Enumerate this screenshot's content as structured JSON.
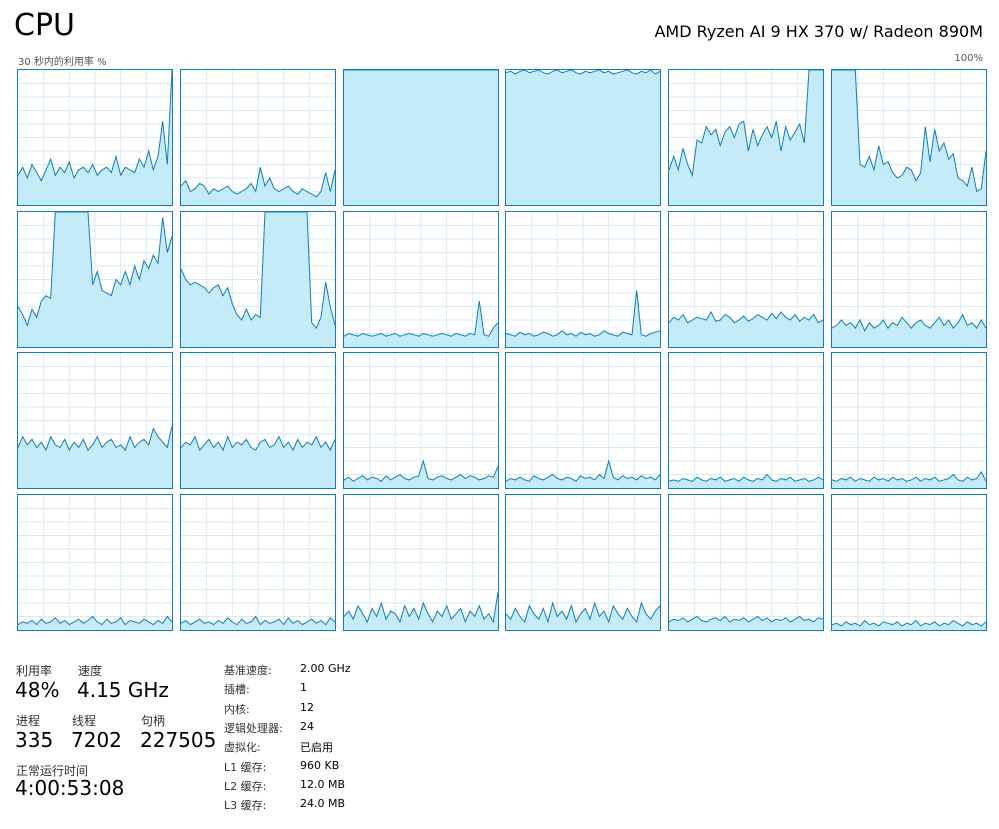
{
  "header": {
    "title": "CPU",
    "model": "AMD Ryzen AI 9 HX 370 w/ Radeon 890M",
    "graph_label": "30 秒内的利用率 %",
    "graph_max": "100%"
  },
  "colors": {
    "line": "#117dbb",
    "fill": "#c4ebf7",
    "grid": "#d9eaf4",
    "border": "#117dbb"
  },
  "chart_data": {
    "type": "area",
    "rows": 4,
    "cols": 6,
    "ylim": [
      0,
      100
    ],
    "xlabel": "",
    "ylabel": "",
    "series": [
      {
        "values": [
          22,
          28,
          20,
          30,
          24,
          18,
          26,
          34,
          22,
          28,
          24,
          32,
          20,
          26,
          28,
          24,
          30,
          22,
          26,
          28,
          24,
          36,
          22,
          28,
          26,
          24,
          34,
          28,
          40,
          26,
          36,
          62,
          30,
          100
        ]
      },
      {
        "values": [
          14,
          18,
          10,
          12,
          16,
          14,
          8,
          12,
          10,
          12,
          14,
          10,
          8,
          10,
          12,
          16,
          10,
          28,
          14,
          20,
          12,
          10,
          12,
          14,
          10,
          8,
          12,
          10,
          8,
          6,
          10,
          24,
          10,
          26
        ]
      },
      {
        "values": [
          100,
          100,
          100,
          100,
          100,
          100,
          100,
          100,
          100,
          100,
          100,
          100,
          100,
          100,
          100,
          100,
          100,
          100,
          100,
          100,
          100,
          100,
          100,
          100,
          100,
          100,
          100,
          100,
          100,
          100,
          100,
          100,
          100,
          100
        ]
      },
      {
        "values": [
          98,
          99,
          97,
          99,
          100,
          98,
          99,
          100,
          98,
          97,
          99,
          100,
          98,
          99,
          100,
          98,
          97,
          99,
          98,
          99,
          100,
          98,
          99,
          97,
          98,
          99,
          100,
          98,
          97,
          99,
          98,
          100,
          97,
          99
        ]
      },
      {
        "values": [
          26,
          36,
          26,
          42,
          30,
          22,
          48,
          46,
          58,
          52,
          56,
          44,
          54,
          58,
          50,
          60,
          62,
          40,
          56,
          44,
          52,
          58,
          50,
          62,
          40,
          58,
          48,
          54,
          60,
          46,
          100,
          100,
          100,
          100
        ]
      },
      {
        "values": [
          100,
          100,
          100,
          100,
          100,
          100,
          30,
          28,
          36,
          26,
          44,
          30,
          32,
          24,
          20,
          22,
          28,
          26,
          18,
          24,
          58,
          32,
          56,
          40,
          46,
          34,
          38,
          20,
          18,
          14,
          28,
          10,
          12,
          40
        ]
      },
      {
        "values": [
          30,
          24,
          16,
          28,
          22,
          34,
          38,
          36,
          100,
          100,
          100,
          100,
          100,
          100,
          100,
          100,
          46,
          56,
          42,
          40,
          38,
          50,
          46,
          56,
          46,
          60,
          50,
          64,
          58,
          68,
          62,
          96,
          70,
          82
        ]
      },
      {
        "values": [
          58,
          50,
          46,
          48,
          46,
          44,
          40,
          44,
          46,
          38,
          44,
          32,
          24,
          20,
          28,
          20,
          24,
          22,
          100,
          100,
          100,
          100,
          100,
          100,
          100,
          100,
          100,
          100,
          18,
          14,
          22,
          48,
          30,
          16
        ]
      },
      {
        "values": [
          8,
          10,
          9,
          8,
          10,
          9,
          8,
          9,
          10,
          8,
          9,
          10,
          8,
          9,
          10,
          9,
          8,
          10,
          9,
          8,
          9,
          10,
          9,
          8,
          10,
          9,
          8,
          10,
          9,
          34,
          9,
          8,
          14,
          18
        ]
      },
      {
        "values": [
          10,
          9,
          8,
          11,
          9,
          10,
          8,
          9,
          11,
          10,
          8,
          9,
          12,
          9,
          10,
          8,
          11,
          9,
          10,
          8,
          9,
          12,
          10,
          9,
          8,
          11,
          10,
          9,
          42,
          9,
          8,
          10,
          11,
          12
        ]
      },
      {
        "values": [
          18,
          22,
          20,
          24,
          18,
          20,
          22,
          21,
          20,
          26,
          19,
          20,
          24,
          22,
          18,
          20,
          23,
          19,
          21,
          24,
          22,
          20,
          25,
          21,
          26,
          22,
          20,
          24,
          19,
          22,
          20,
          24,
          18,
          20
        ]
      },
      {
        "values": [
          14,
          16,
          20,
          16,
          18,
          14,
          20,
          12,
          18,
          14,
          16,
          20,
          14,
          18,
          16,
          22,
          18,
          14,
          18,
          20,
          16,
          14,
          18,
          22,
          16,
          20,
          14,
          18,
          24,
          16,
          18,
          14,
          20,
          14
        ]
      },
      {
        "values": [
          30,
          38,
          32,
          36,
          30,
          34,
          28,
          38,
          32,
          30,
          36,
          28,
          34,
          30,
          36,
          28,
          32,
          38,
          30,
          34,
          36,
          30,
          32,
          28,
          38,
          30,
          34,
          36,
          32,
          44,
          38,
          34,
          30,
          46
        ]
      },
      {
        "values": [
          30,
          34,
          32,
          38,
          28,
          32,
          36,
          30,
          34,
          28,
          38,
          30,
          34,
          32,
          36,
          30,
          28,
          34,
          36,
          30,
          32,
          38,
          30,
          34,
          28,
          36,
          30,
          34,
          32,
          38,
          30,
          34,
          28,
          36
        ]
      },
      {
        "values": [
          6,
          8,
          5,
          7,
          9,
          6,
          8,
          7,
          5,
          9,
          6,
          8,
          10,
          7,
          6,
          8,
          9,
          20,
          7,
          6,
          8,
          9,
          7,
          6,
          8,
          10,
          7,
          9,
          8,
          6,
          7,
          9,
          8,
          16
        ]
      },
      {
        "values": [
          5,
          7,
          6,
          8,
          6,
          5,
          9,
          7,
          6,
          8,
          10,
          7,
          6,
          8,
          7,
          5,
          9,
          7,
          8,
          6,
          10,
          7,
          20,
          8,
          6,
          9,
          7,
          8,
          6,
          9,
          7,
          8,
          6,
          10
        ]
      },
      {
        "values": [
          5,
          6,
          5,
          7,
          6,
          5,
          8,
          6,
          5,
          7,
          6,
          8,
          5,
          6,
          7,
          5,
          8,
          6,
          5,
          7,
          6,
          10,
          6,
          5,
          7,
          6,
          8,
          5,
          6,
          7,
          5,
          6,
          8,
          6
        ]
      },
      {
        "values": [
          6,
          5,
          7,
          6,
          8,
          5,
          7,
          6,
          5,
          8,
          6,
          7,
          5,
          8,
          6,
          7,
          5,
          6,
          8,
          5,
          7,
          6,
          8,
          5,
          6,
          7,
          10,
          6,
          5,
          8,
          6,
          7,
          12,
          5
        ]
      },
      {
        "values": [
          4,
          6,
          5,
          7,
          4,
          8,
          5,
          6,
          9,
          5,
          7,
          4,
          6,
          8,
          5,
          7,
          10,
          6,
          4,
          8,
          5,
          6,
          9,
          4,
          7,
          6,
          5,
          8,
          6,
          4,
          7,
          5,
          10,
          6
        ]
      },
      {
        "values": [
          5,
          7,
          4,
          6,
          8,
          5,
          6,
          4,
          7,
          5,
          9,
          6,
          4,
          8,
          5,
          6,
          10,
          4,
          7,
          5,
          6,
          8,
          4,
          9,
          5,
          7,
          4,
          6,
          8,
          5,
          7,
          4,
          9,
          6
        ]
      },
      {
        "values": [
          10,
          14,
          8,
          18,
          12,
          6,
          16,
          10,
          20,
          8,
          14,
          12,
          6,
          18,
          10,
          16,
          8,
          20,
          12,
          6,
          14,
          10,
          18,
          8,
          12,
          16,
          6,
          14,
          10,
          18,
          8,
          12,
          6,
          28
        ]
      },
      {
        "values": [
          12,
          8,
          16,
          10,
          6,
          18,
          12,
          8,
          16,
          6,
          20,
          10,
          14,
          8,
          18,
          6,
          12,
          16,
          8,
          20,
          10,
          14,
          6,
          18,
          12,
          8,
          16,
          10,
          6,
          20,
          12,
          8,
          14,
          18
        ]
      },
      {
        "values": [
          6,
          8,
          7,
          9,
          6,
          8,
          10,
          7,
          6,
          8,
          9,
          7,
          10,
          6,
          8,
          7,
          9,
          6,
          8,
          10,
          7,
          9,
          6,
          8,
          7,
          9,
          6,
          8,
          10,
          7,
          8,
          6,
          9,
          8
        ]
      },
      {
        "values": [
          4,
          5,
          3,
          6,
          4,
          5,
          3,
          7,
          4,
          5,
          3,
          6,
          5,
          4,
          6,
          3,
          5,
          4,
          7,
          3,
          5,
          4,
          6,
          3,
          5,
          4,
          7,
          5,
          3,
          6,
          4,
          5,
          3,
          6
        ]
      }
    ]
  },
  "stats": {
    "utilization": {
      "label": "利用率",
      "value": "48%"
    },
    "speed": {
      "label": "速度",
      "value": "4.15 GHz"
    },
    "processes": {
      "label": "进程",
      "value": "335"
    },
    "threads": {
      "label": "线程",
      "value": "7202"
    },
    "handles": {
      "label": "句柄",
      "value": "227505"
    },
    "uptime": {
      "label": "正常运行时间",
      "value": "4:00:53:08"
    }
  },
  "details": [
    {
      "key": "基准速度:",
      "value": "2.00 GHz"
    },
    {
      "key": "插槽:",
      "value": "1"
    },
    {
      "key": "内核:",
      "value": "12"
    },
    {
      "key": "逻辑处理器:",
      "value": "24"
    },
    {
      "key": "虚拟化:",
      "value": "已启用"
    },
    {
      "key": "L1 缓存:",
      "value": "960 KB"
    },
    {
      "key": "L2 缓存:",
      "value": "12.0 MB"
    },
    {
      "key": "L3 缓存:",
      "value": "24.0 MB"
    }
  ]
}
